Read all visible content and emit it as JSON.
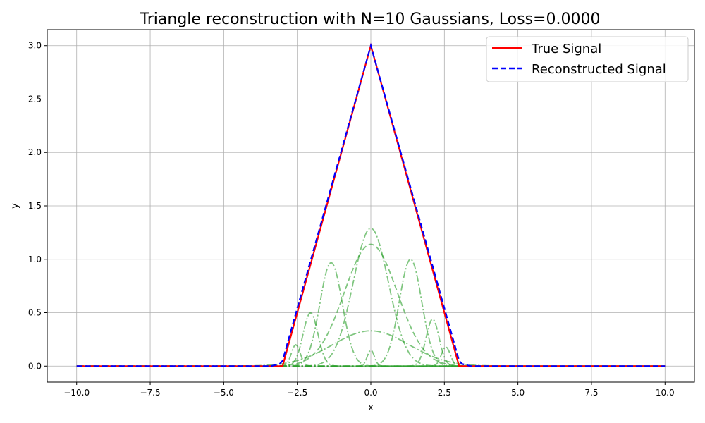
{
  "chart_data": {
    "type": "line",
    "title": "Triangle reconstruction with N=10 Gaussians, Loss=0.0000",
    "xlabel": "x",
    "ylabel": "y",
    "xlim": [
      -11,
      11
    ],
    "ylim": [
      -0.15,
      3.15
    ],
    "xticks": [
      -10.0,
      -7.5,
      -5.0,
      -2.5,
      0.0,
      2.5,
      5.0,
      7.5,
      10.0
    ],
    "xtick_labels": [
      "−10.0",
      "−7.5",
      "−5.0",
      "−2.5",
      "0.0",
      "2.5",
      "5.0",
      "7.5",
      "10.0"
    ],
    "yticks": [
      0.0,
      0.5,
      1.0,
      1.5,
      2.0,
      2.5,
      3.0
    ],
    "ytick_labels": [
      "0.0",
      "0.5",
      "1.0",
      "1.5",
      "2.0",
      "2.5",
      "3.0"
    ],
    "grid": true,
    "legend": {
      "placement": "top-right"
    },
    "colors": {
      "true": "#ff0000",
      "reconstructed": "#0000ff",
      "gaussian": "#2ca02c"
    },
    "series": [
      {
        "name": "True Signal",
        "style": "solid",
        "color": "#ff0000",
        "x": [
          -10,
          -3,
          0,
          3,
          10
        ],
        "y": [
          0,
          0,
          3,
          0,
          0
        ]
      },
      {
        "name": "Reconstructed Signal",
        "style": "dashed",
        "color": "#0000ff",
        "x": [
          -10,
          -3.4,
          -3.1,
          -3,
          0,
          3,
          3.1,
          3.4,
          10
        ],
        "y": [
          0,
          0.0,
          0.02,
          0.05,
          3,
          0.05,
          0.02,
          0.0,
          0
        ]
      }
    ],
    "gaussian_components": [
      {
        "amplitude": 1.29,
        "mean": 0.0,
        "sigma": 0.6,
        "style": "dashdot"
      },
      {
        "amplitude": 1.14,
        "mean": 0.0,
        "sigma": 0.9,
        "style": "dashed"
      },
      {
        "amplitude": 0.97,
        "mean": -1.35,
        "sigma": 0.38,
        "style": "dashdot"
      },
      {
        "amplitude": 1.0,
        "mean": 1.35,
        "sigma": 0.38,
        "style": "dashdot"
      },
      {
        "amplitude": 0.5,
        "mean": -2.05,
        "sigma": 0.25,
        "style": "dashdot"
      },
      {
        "amplitude": 0.44,
        "mean": 2.1,
        "sigma": 0.22,
        "style": "dashdot"
      },
      {
        "amplitude": 0.33,
        "mean": 0.0,
        "sigma": 1.3,
        "style": "dashdot"
      },
      {
        "amplitude": 0.2,
        "mean": -2.55,
        "sigma": 0.15,
        "style": "dashdot"
      },
      {
        "amplitude": 0.18,
        "mean": 2.55,
        "sigma": 0.15,
        "style": "dashdot"
      },
      {
        "amplitude": 0.15,
        "mean": 0.0,
        "sigma": 0.12,
        "style": "dashdot"
      }
    ]
  }
}
